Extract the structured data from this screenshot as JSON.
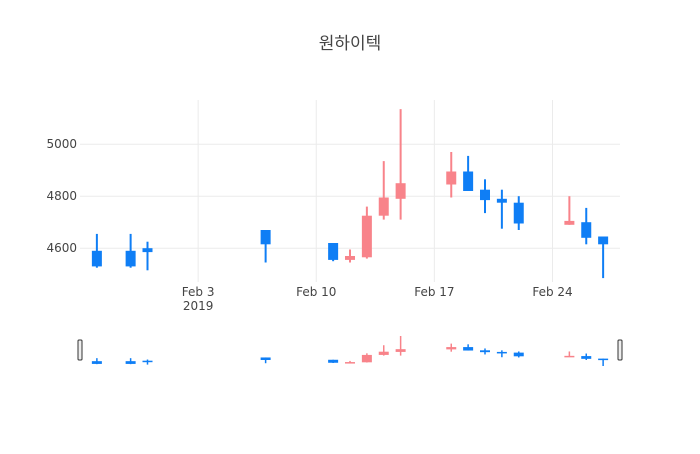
{
  "chart_data": {
    "type": "candlestick",
    "title": "원하이텍",
    "xlabel": "",
    "ylabel": "",
    "x_ticks": [
      "Feb 3",
      "Feb 10",
      "Feb 17",
      "Feb 24"
    ],
    "x_tick_sublabel": "2019",
    "y_ticks": [
      4600,
      4800,
      5000
    ],
    "ylim": [
      4470,
      5170
    ],
    "x_range": [
      "2019-01-27",
      "2019-02-28"
    ],
    "grid": true,
    "rangeslider": true,
    "colors": {
      "increasing": "#f8838a",
      "decreasing": "#0f7ef5",
      "grid": "#ebebeb"
    },
    "candles": [
      {
        "date": "2019-01-28",
        "open": 4590,
        "high": 4655,
        "low": 4525,
        "close": 4530
      },
      {
        "date": "2019-01-30",
        "open": 4590,
        "high": 4655,
        "low": 4525,
        "close": 4530
      },
      {
        "date": "2019-01-31",
        "open": 4600,
        "high": 4625,
        "low": 4515,
        "close": 4585
      },
      {
        "date": "2019-02-07",
        "open": 4670,
        "high": 4670,
        "low": 4545,
        "close": 4615
      },
      {
        "date": "2019-02-11",
        "open": 4620,
        "high": 4620,
        "low": 4550,
        "close": 4555
      },
      {
        "date": "2019-02-12",
        "open": 4555,
        "high": 4595,
        "low": 4545,
        "close": 4570
      },
      {
        "date": "2019-02-13",
        "open": 4565,
        "high": 4760,
        "low": 4560,
        "close": 4725
      },
      {
        "date": "2019-02-14",
        "open": 4725,
        "high": 4935,
        "low": 4710,
        "close": 4795
      },
      {
        "date": "2019-02-15",
        "open": 4790,
        "high": 5135,
        "low": 4710,
        "close": 4850
      },
      {
        "date": "2019-02-18",
        "open": 4845,
        "high": 4970,
        "low": 4795,
        "close": 4895
      },
      {
        "date": "2019-02-19",
        "open": 4895,
        "high": 4955,
        "low": 4820,
        "close": 4820
      },
      {
        "date": "2019-02-20",
        "open": 4825,
        "high": 4865,
        "low": 4735,
        "close": 4785
      },
      {
        "date": "2019-02-21",
        "open": 4790,
        "high": 4825,
        "low": 4675,
        "close": 4775
      },
      {
        "date": "2019-02-22",
        "open": 4775,
        "high": 4800,
        "low": 4670,
        "close": 4695
      },
      {
        "date": "2019-02-25",
        "open": 4690,
        "high": 4800,
        "low": 4690,
        "close": 4705
      },
      {
        "date": "2019-02-26",
        "open": 4700,
        "high": 4755,
        "low": 4615,
        "close": 4640
      },
      {
        "date": "2019-02-27",
        "open": 4645,
        "high": 4645,
        "low": 4485,
        "close": 4615
      }
    ]
  }
}
